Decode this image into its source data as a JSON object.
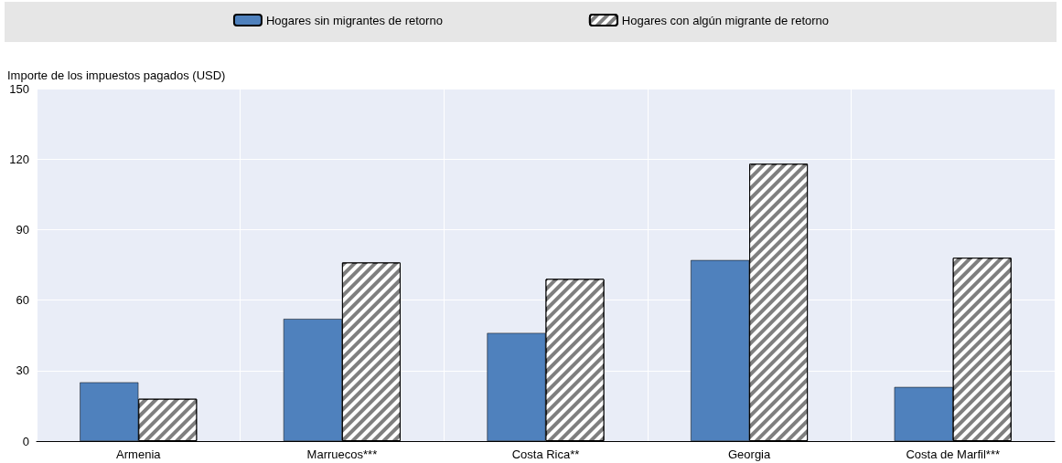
{
  "chart_data": {
    "type": "bar",
    "ylabel": "Importe de los impuestos pagados (USD)",
    "categories": [
      "Armenia",
      "Marruecos***",
      "Costa Rica**",
      "Georgia",
      "Costa de Marfil***"
    ],
    "series": [
      {
        "name": "Hogares sin migrantes de retorno",
        "color": "#4f81bd",
        "values": [
          25,
          52,
          46,
          77,
          23
        ]
      },
      {
        "name": "Hogares con algún migrante de retorno",
        "color": "#7f7f7f",
        "values": [
          18,
          76,
          69,
          118,
          78
        ]
      }
    ],
    "ylim": [
      0,
      150
    ],
    "yticks": [
      0,
      30,
      60,
      90,
      120,
      150
    ],
    "grid": true,
    "legend": "top"
  }
}
